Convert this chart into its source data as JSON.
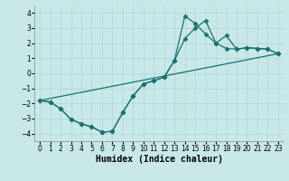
{
  "xlabel": "Humidex (Indice chaleur)",
  "xlim": [
    -0.5,
    23.5
  ],
  "ylim": [
    -4.5,
    4.5
  ],
  "xticks": [
    0,
    1,
    2,
    3,
    4,
    5,
    6,
    7,
    8,
    9,
    10,
    11,
    12,
    13,
    14,
    15,
    16,
    17,
    18,
    19,
    20,
    21,
    22,
    23
  ],
  "yticks": [
    -4,
    -3,
    -2,
    -1,
    0,
    1,
    2,
    3,
    4
  ],
  "bg_color": "#c8e8e8",
  "line_color": "#1a7070",
  "curve1_x": [
    0,
    1,
    2,
    3,
    4,
    5,
    6,
    7,
    8,
    9,
    10,
    11,
    12,
    13,
    14,
    15,
    16,
    17,
    18,
    19,
    20,
    21,
    22,
    23
  ],
  "curve1_y": [
    -1.8,
    -1.9,
    -2.35,
    -3.05,
    -3.35,
    -3.55,
    -3.9,
    -3.85,
    -2.6,
    -1.5,
    -0.7,
    -0.5,
    -0.25,
    0.85,
    3.8,
    3.3,
    2.6,
    2.0,
    1.65,
    1.6,
    1.7,
    1.65,
    1.6,
    1.3
  ],
  "curve2_x": [
    0,
    1,
    2,
    3,
    4,
    5,
    6,
    7,
    8,
    9,
    10,
    11,
    12,
    13,
    14,
    15,
    16,
    17,
    18,
    19,
    20,
    21,
    22,
    23
  ],
  "curve2_y": [
    -1.8,
    -1.9,
    -2.35,
    -3.05,
    -3.35,
    -3.55,
    -3.9,
    -3.85,
    -2.6,
    -1.5,
    -0.7,
    -0.5,
    -0.25,
    0.85,
    2.3,
    3.0,
    3.5,
    2.0,
    2.5,
    1.6,
    1.7,
    1.65,
    1.6,
    1.3
  ],
  "line3_x": [
    0,
    23
  ],
  "line3_y": [
    -1.8,
    1.3
  ],
  "marker": "D",
  "markersize": 2.5,
  "linewidth": 0.9,
  "xlabel_fontsize": 7,
  "tick_fontsize": 5.5
}
